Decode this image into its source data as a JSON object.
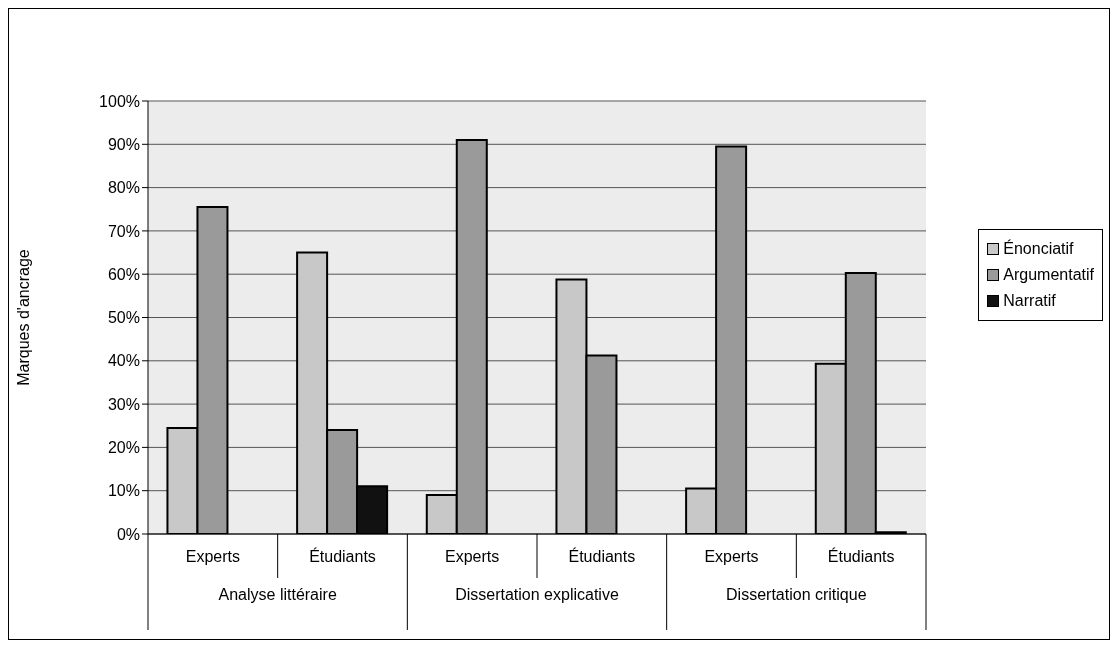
{
  "chart_data": {
    "type": "bar",
    "ylabel": "Marques d'ancrage",
    "categories": [
      "Experts",
      "Étudiants",
      "Experts",
      "Étudiants",
      "Experts",
      "Étudiants"
    ],
    "annotations": [
      "Analyse littéraire",
      "Dissertation explicative",
      "Dissertation critique"
    ],
    "series": [
      {
        "name": "Énonciatif",
        "color": "#c8c8c8",
        "values": [
          24.5,
          65,
          9,
          58.8,
          10.5,
          39.3
        ]
      },
      {
        "name": "Argumentatif",
        "color": "#9a9a9a",
        "values": [
          75.5,
          24,
          91,
          41.2,
          89.5,
          60.3
        ]
      },
      {
        "name": "Narratif",
        "color": "#111111",
        "values": [
          0,
          11,
          0,
          0,
          0,
          0.4
        ]
      }
    ],
    "ylim": [
      0,
      100
    ],
    "yticks": [
      {
        "value": 0,
        "label": "0%"
      },
      {
        "value": 10,
        "label": "10%"
      },
      {
        "value": 20,
        "label": "20%"
      },
      {
        "value": 30,
        "label": "30%"
      },
      {
        "value": 40,
        "label": "40%"
      },
      {
        "value": 50,
        "label": "50%"
      },
      {
        "value": 60,
        "label": "60%"
      },
      {
        "value": 70,
        "label": "70%"
      },
      {
        "value": 80,
        "label": "80%"
      },
      {
        "value": 90,
        "label": "90%"
      },
      {
        "value": 100,
        "label": "100%"
      }
    ],
    "grid": "y",
    "legend": "right"
  }
}
